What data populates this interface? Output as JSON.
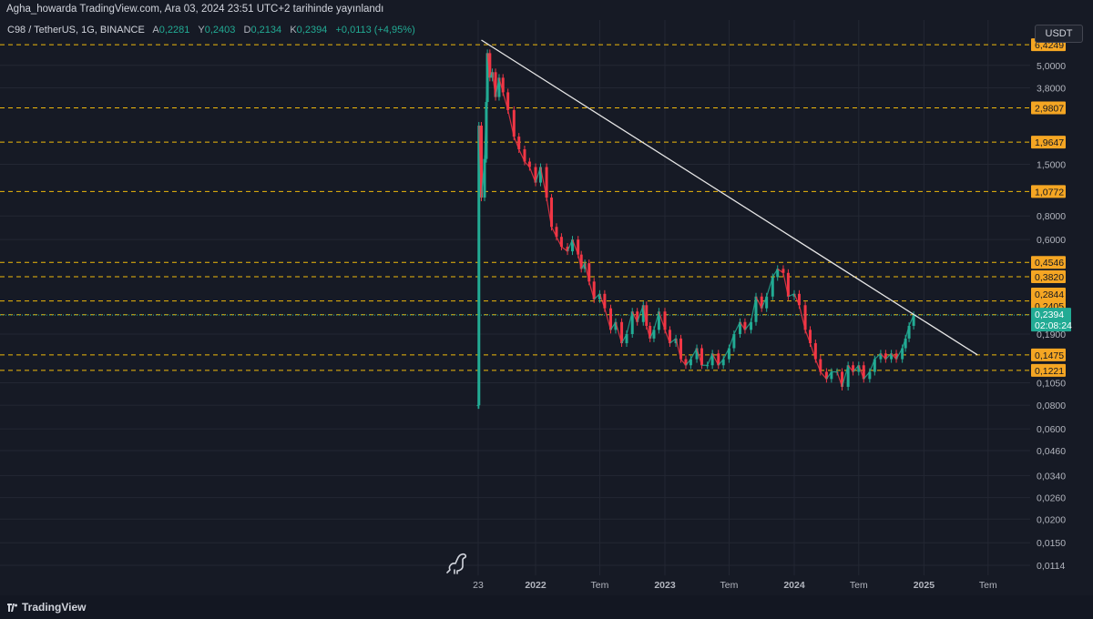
{
  "header": {
    "publish_text": "Agha_howarda TradingView.com, Ara 03, 2024 23:51 UTC+2 tarihinde yayınlandı"
  },
  "legend": {
    "symbol": "C98 / TetherUS, 1G, BINANCE",
    "open_label": "A",
    "open_value": "0,2281",
    "high_label": "Y",
    "high_value": "0,2403",
    "low_label": "D",
    "low_value": "0,2134",
    "close_label": "K",
    "close_value": "0,2394",
    "change": "+0,0113 (+4,95%)"
  },
  "currency_button": "USDT",
  "footer": {
    "brand": "TradingView"
  },
  "colors": {
    "background": "#161a25",
    "up": "#22ab94",
    "down": "#f23645",
    "level_line": "#f0b90b",
    "level_badge": "#f5a623",
    "trend_line": "#e6e6e6",
    "current_price_badge": "#22ab94"
  },
  "chart_data": {
    "type": "line",
    "scale": "log",
    "grid": true,
    "price_axis_ticks": [
      "5,0000",
      "3,8000",
      "1,5000",
      "0,8000",
      "0,6000",
      "0,1900",
      "0,1050",
      "0,0800",
      "0,0600",
      "0,0460",
      "0,0340",
      "0,0260",
      "0,0200",
      "0,0150",
      "0,0114"
    ],
    "time_axis_ticks": [
      "23",
      "2022",
      "Tem",
      "2023",
      "Tem",
      "2024",
      "Tem",
      "2025",
      "Tem"
    ],
    "horizontal_levels": [
      "6,4249",
      "2,9807",
      "1,9647",
      "1,0772",
      "0,4546",
      "0,3820",
      "0,2844",
      "0,2405",
      "0,1475",
      "0,1221"
    ],
    "current_price": {
      "value": "0,2394",
      "countdown": "02:08:24"
    },
    "trend_line": {
      "from": {
        "date": "2021-08",
        "price": 6.8
      },
      "to": {
        "date": "2025-06",
        "price": 0.1475
      }
    },
    "series": [
      {
        "x": [
          "2021-07-23",
          "2021-07-25",
          "2021-08-01",
          "2021-08-10",
          "2021-08-15",
          "2021-08-18",
          "2021-08-25",
          "2021-09-01",
          "2021-09-10",
          "2021-09-20",
          "2021-10-01",
          "2021-10-15",
          "2021-11-01",
          "2021-11-15",
          "2021-12-01",
          "2021-12-15",
          "2022-01-01",
          "2022-01-15",
          "2022-02-01",
          "2022-02-15",
          "2022-03-01",
          "2022-03-15",
          "2022-04-01",
          "2022-04-15",
          "2022-05-01",
          "2022-05-10",
          "2022-05-20",
          "2022-06-01",
          "2022-06-15",
          "2022-07-01",
          "2022-07-15",
          "2022-08-01",
          "2022-08-15",
          "2022-09-01",
          "2022-09-15",
          "2022-10-01",
          "2022-10-15",
          "2022-11-01",
          "2022-11-10",
          "2022-11-20",
          "2022-12-01",
          "2022-12-15",
          "2023-01-01",
          "2023-01-15",
          "2023-02-01",
          "2023-02-15",
          "2023-03-01",
          "2023-03-15",
          "2023-04-01",
          "2023-04-15",
          "2023-05-01",
          "2023-05-15",
          "2023-06-01",
          "2023-06-15",
          "2023-07-01",
          "2023-07-15",
          "2023-08-01",
          "2023-08-15",
          "2023-09-01",
          "2023-09-15",
          "2023-10-01",
          "2023-10-15",
          "2023-11-01",
          "2023-11-15",
          "2023-12-01",
          "2023-12-15",
          "2024-01-01",
          "2024-01-15",
          "2024-02-01",
          "2024-02-15",
          "2024-03-01",
          "2024-03-15",
          "2024-04-01",
          "2024-04-15",
          "2024-05-01",
          "2024-05-15",
          "2024-06-01",
          "2024-06-15",
          "2024-07-01",
          "2024-07-15",
          "2024-08-01",
          "2024-08-15",
          "2024-09-01",
          "2024-09-15",
          "2024-10-01",
          "2024-10-15",
          "2024-11-01",
          "2024-11-10",
          "2024-11-20",
          "2024-12-03"
        ],
        "y": [
          0.08,
          2.4,
          1.0,
          1.6,
          3.2,
          5.8,
          4.3,
          4.6,
          3.4,
          4.3,
          3.6,
          2.9,
          2.1,
          1.8,
          1.55,
          1.45,
          1.2,
          1.45,
          1.0,
          0.7,
          0.62,
          0.55,
          0.52,
          0.6,
          0.5,
          0.42,
          0.45,
          0.36,
          0.29,
          0.31,
          0.26,
          0.2,
          0.22,
          0.17,
          0.19,
          0.25,
          0.22,
          0.27,
          0.21,
          0.18,
          0.2,
          0.25,
          0.2,
          0.17,
          0.18,
          0.14,
          0.13,
          0.14,
          0.16,
          0.13,
          0.13,
          0.15,
          0.13,
          0.14,
          0.16,
          0.19,
          0.22,
          0.2,
          0.22,
          0.3,
          0.26,
          0.3,
          0.38,
          0.42,
          0.4,
          0.3,
          0.31,
          0.27,
          0.2,
          0.17,
          0.14,
          0.12,
          0.11,
          0.12,
          0.12,
          0.1,
          0.13,
          0.12,
          0.13,
          0.11,
          0.12,
          0.14,
          0.15,
          0.14,
          0.15,
          0.14,
          0.16,
          0.18,
          0.21,
          0.2394
        ]
      }
    ]
  }
}
